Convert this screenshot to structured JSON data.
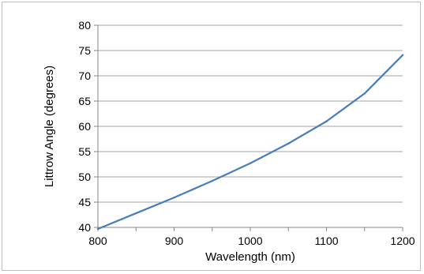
{
  "chart_data": {
    "type": "line",
    "title": "",
    "xlabel": "Wavelength (nm)",
    "ylabel": "Littrow Angle (degrees)",
    "xlim": [
      800,
      1200
    ],
    "ylim": [
      40,
      80
    ],
    "x_ticks": [
      800,
      900,
      1000,
      1100,
      1200
    ],
    "y_ticks": [
      40,
      45,
      50,
      55,
      60,
      65,
      70,
      75,
      80
    ],
    "grid": "horizontal",
    "legend": "none",
    "series": [
      {
        "color": "#4a7ebb",
        "x": [
          800,
          850,
          900,
          950,
          1000,
          1050,
          1100,
          1150,
          1200
        ],
        "y": [
          39.7,
          42.8,
          45.9,
          49.2,
          52.7,
          56.6,
          61.0,
          66.5,
          74.1
        ]
      }
    ]
  }
}
